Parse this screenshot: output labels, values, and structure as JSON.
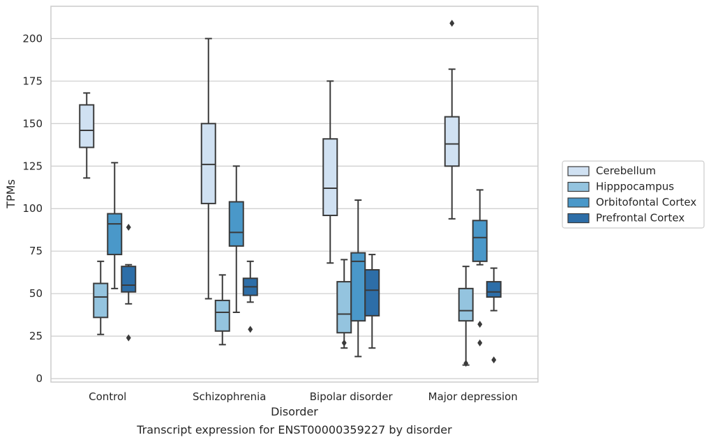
{
  "caption": "Transcript expression for ENST00000359227 by disorder",
  "colors": {
    "grid": "#cccccc",
    "frame": "#cccccc",
    "box_edge": "#3a3a3a",
    "text": "#262626"
  },
  "chart_data": {
    "type": "box",
    "xlabel": "Disorder",
    "ylabel": "TPMs",
    "ylim": [
      -2,
      219
    ],
    "yticks": [
      0,
      25,
      50,
      75,
      100,
      125,
      150,
      175,
      200
    ],
    "grid": "horizontal",
    "legend_position": "right",
    "categories": [
      "Control",
      "Schizophrenia",
      "Bipolar disorder",
      "Major depression"
    ],
    "series": [
      {
        "name": "Cerebellum",
        "color": "#d0e1f2",
        "boxes": [
          {
            "whisker_low": 118,
            "q1": 136,
            "median": 146,
            "q3": 161,
            "whisker_high": 168,
            "outliers": []
          },
          {
            "whisker_low": 47,
            "q1": 103,
            "median": 126,
            "q3": 150,
            "whisker_high": 200,
            "outliers": []
          },
          {
            "whisker_low": 68,
            "q1": 96,
            "median": 112,
            "q3": 141,
            "whisker_high": 175,
            "outliers": []
          },
          {
            "whisker_low": 94,
            "q1": 125,
            "median": 138,
            "q3": 154,
            "whisker_high": 182,
            "outliers": [
              209
            ]
          }
        ]
      },
      {
        "name": "Hipppocampus",
        "color": "#94c4df",
        "boxes": [
          {
            "whisker_low": 26,
            "q1": 36,
            "median": 48,
            "q3": 56,
            "whisker_high": 69,
            "outliers": []
          },
          {
            "whisker_low": 20,
            "q1": 28,
            "median": 39,
            "q3": 46,
            "whisker_high": 61,
            "outliers": []
          },
          {
            "whisker_low": 18,
            "q1": 27,
            "median": 38,
            "q3": 57,
            "whisker_high": 70,
            "outliers": [
              21
            ]
          },
          {
            "whisker_low": 8,
            "q1": 34,
            "median": 40,
            "q3": 53,
            "whisker_high": 66,
            "outliers": [
              9
            ]
          }
        ]
      },
      {
        "name": "Orbitofontal Cortex",
        "color": "#4a98c9",
        "boxes": [
          {
            "whisker_low": 53,
            "q1": 73,
            "median": 91,
            "q3": 97,
            "whisker_high": 127,
            "outliers": []
          },
          {
            "whisker_low": 39,
            "q1": 78,
            "median": 86,
            "q3": 104,
            "whisker_high": 125,
            "outliers": []
          },
          {
            "whisker_low": 13,
            "q1": 34,
            "median": 69,
            "q3": 74,
            "whisker_high": 105,
            "outliers": []
          },
          {
            "whisker_low": 67,
            "q1": 69,
            "median": 83,
            "q3": 93,
            "whisker_high": 111,
            "outliers": [
              32,
              21
            ]
          }
        ]
      },
      {
        "name": "Prefrontal Cortex",
        "color": "#2d6ea8",
        "boxes": [
          {
            "whisker_low": 44,
            "q1": 51,
            "median": 55,
            "q3": 66,
            "whisker_high": 67,
            "outliers": [
              89,
              24
            ]
          },
          {
            "whisker_low": 45,
            "q1": 49,
            "median": 54,
            "q3": 59,
            "whisker_high": 69,
            "outliers": [
              29
            ]
          },
          {
            "whisker_low": 18,
            "q1": 37,
            "median": 52,
            "q3": 64,
            "whisker_high": 73,
            "outliers": []
          },
          {
            "whisker_low": 40,
            "q1": 48,
            "median": 51,
            "q3": 57,
            "whisker_high": 65,
            "outliers": [
              11
            ]
          }
        ]
      }
    ]
  }
}
